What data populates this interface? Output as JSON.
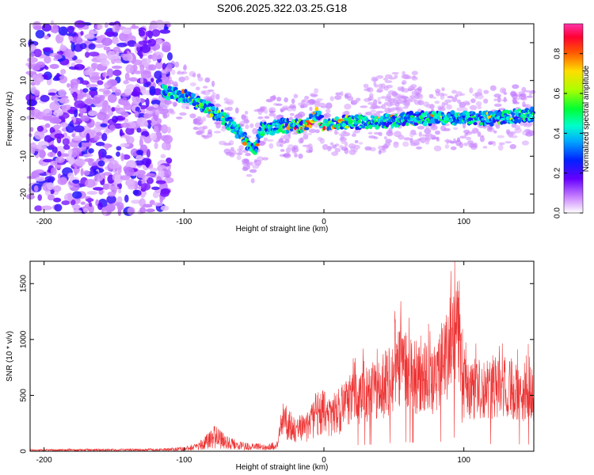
{
  "title": "S206.2025.322.03.25.G18",
  "chart_data": [
    {
      "type": "heatmap",
      "name": "spectrogram",
      "xlabel": "Height of straight line (km)",
      "ylabel": "Frequency (Hz)",
      "xlim": [
        -210,
        150
      ],
      "ylim": [
        -25,
        25
      ],
      "xticks": [
        -200,
        -100,
        0,
        100
      ],
      "yticks": [
        -20,
        -10,
        0,
        10,
        20
      ],
      "colorbar": {
        "label": "Normalized spectral amplitude",
        "range": [
          0.0,
          0.95
        ],
        "ticks": [
          0.0,
          0.2,
          0.4,
          0.6,
          0.8
        ]
      },
      "signal_track": [
        {
          "x": -115,
          "y": 7
        },
        {
          "x": -100,
          "y": 6
        },
        {
          "x": -90,
          "y": 4
        },
        {
          "x": -75,
          "y": 1
        },
        {
          "x": -60,
          "y": -4
        },
        {
          "x": -50,
          "y": -9
        },
        {
          "x": -45,
          "y": -3
        },
        {
          "x": -30,
          "y": -2
        },
        {
          "x": -15,
          "y": -2
        },
        {
          "x": -5,
          "y": 1
        },
        {
          "x": 0,
          "y": -2
        },
        {
          "x": 15,
          "y": -1
        },
        {
          "x": 40,
          "y": -1
        },
        {
          "x": 60,
          "y": 0
        },
        {
          "x": 90,
          "y": 0
        },
        {
          "x": 120,
          "y": 0
        },
        {
          "x": 150,
          "y": 1
        }
      ]
    },
    {
      "type": "line",
      "name": "snr",
      "xlabel": "Height of straight line (km)",
      "ylabel": "SNR (10 * v/v)",
      "xlim": [
        -210,
        150
      ],
      "ylim": [
        0,
        1700
      ],
      "xticks": [
        -200,
        -100,
        0,
        100
      ],
      "yticks": [
        0,
        500,
        1000,
        1500
      ],
      "color": "#ee3333",
      "envelope": [
        {
          "x": -210,
          "y": 20
        },
        {
          "x": -120,
          "y": 25
        },
        {
          "x": -100,
          "y": 40
        },
        {
          "x": -90,
          "y": 80
        },
        {
          "x": -78,
          "y": 230
        },
        {
          "x": -70,
          "y": 150
        },
        {
          "x": -60,
          "y": 90
        },
        {
          "x": -40,
          "y": 60
        },
        {
          "x": -33,
          "y": 100
        },
        {
          "x": -30,
          "y": 450
        },
        {
          "x": -20,
          "y": 300
        },
        {
          "x": -10,
          "y": 350
        },
        {
          "x": -5,
          "y": 550
        },
        {
          "x": 5,
          "y": 500
        },
        {
          "x": 20,
          "y": 650
        },
        {
          "x": 40,
          "y": 800
        },
        {
          "x": 55,
          "y": 1050
        },
        {
          "x": 65,
          "y": 950
        },
        {
          "x": 80,
          "y": 900
        },
        {
          "x": 97,
          "y": 1700
        },
        {
          "x": 100,
          "y": 800
        },
        {
          "x": 120,
          "y": 800
        },
        {
          "x": 150,
          "y": 750
        }
      ]
    }
  ]
}
